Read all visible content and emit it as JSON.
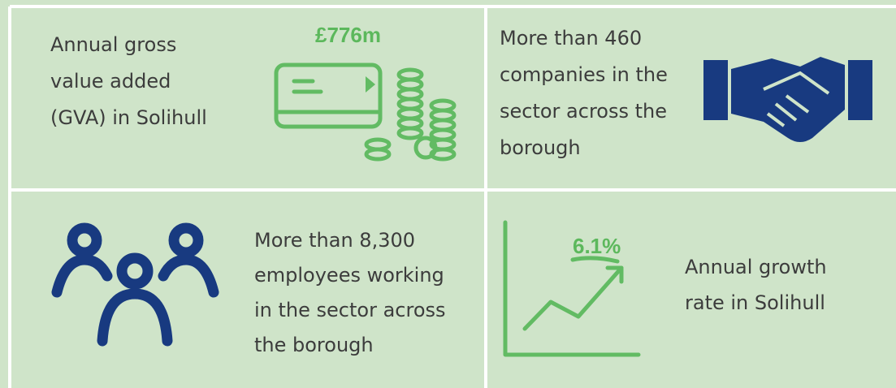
{
  "panels": [
    {
      "lines": [
        "Annual gross",
        "value added",
        "(GVA) in Solihull"
      ],
      "figure": "£776m"
    },
    {
      "lines": [
        "More than 460",
        "companies in the",
        "sector across the",
        "borough"
      ]
    },
    {
      "lines": [
        "More than 8,300",
        "employees working",
        "in the sector across",
        "the borough"
      ]
    },
    {
      "lines": [
        "Annual growth",
        "rate in Solihull"
      ],
      "figure": "6.1%"
    }
  ]
}
